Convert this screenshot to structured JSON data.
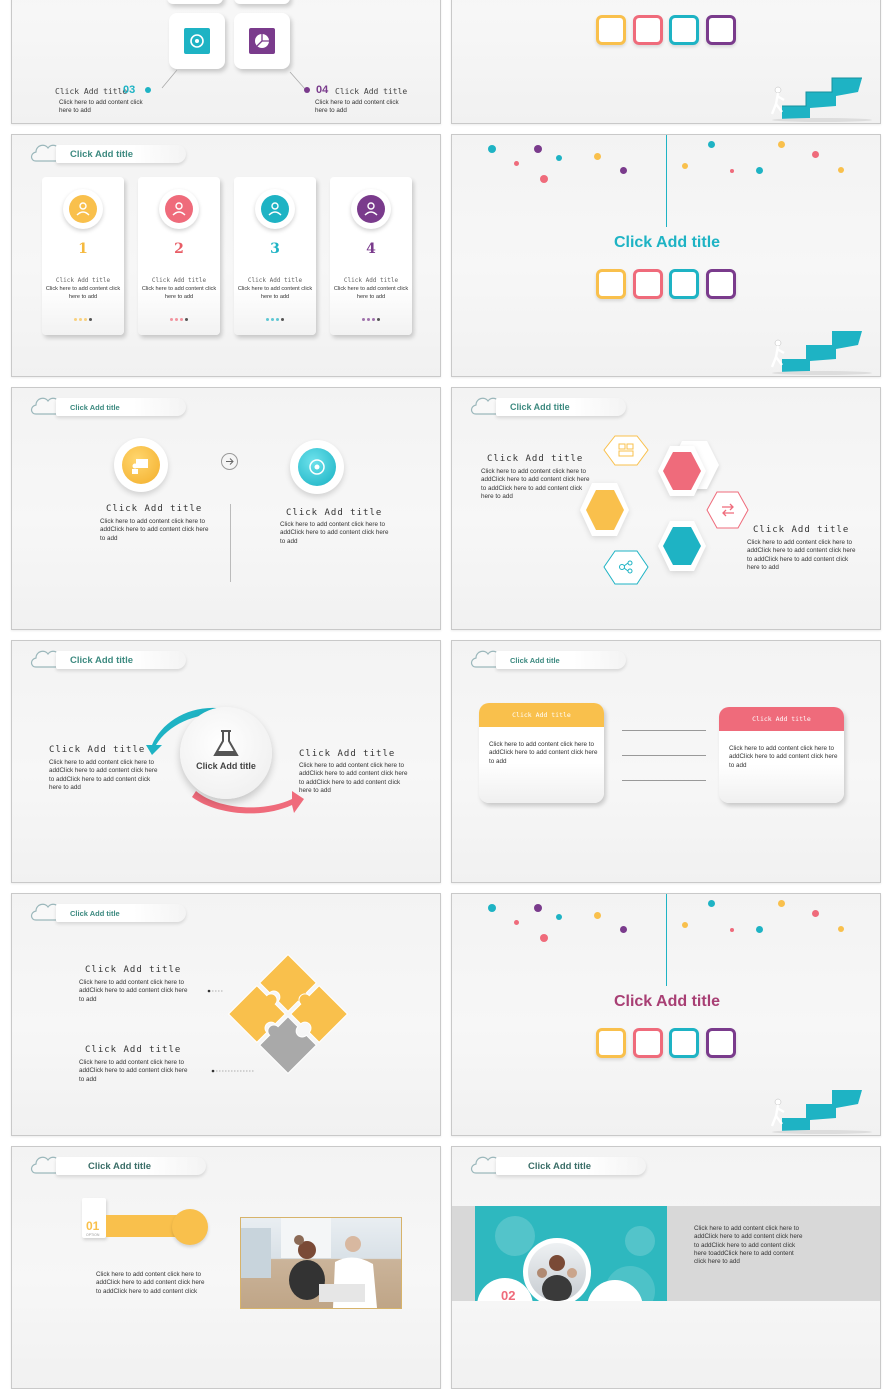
{
  "colors": {
    "teal": "#1eb3c4",
    "yellow": "#f9c04c",
    "pink": "#ef6b7b",
    "purple": "#7a3b8c",
    "red": "#e85d66"
  },
  "s1": {
    "label_03": "Click Add title",
    "num_03": "03",
    "body_03": "Click here to add content click here to add",
    "num_04": "04",
    "label_04": "Click Add title",
    "body_04": "Click here to add content click here to add"
  },
  "s3": {
    "header": "Click Add title",
    "cards": [
      {
        "num": "1",
        "title": "Click Add title",
        "body": "Click here to add content click here to add",
        "icon": "people-icon"
      },
      {
        "num": "2",
        "title": "Click Add title",
        "body": "Click here to add content click here to add",
        "icon": "hand-gear-icon"
      },
      {
        "num": "3",
        "title": "Click Add title",
        "body": "Click here to add content click here to add",
        "icon": "card-icon"
      },
      {
        "num": "4",
        "title": "Click Add title",
        "body": "Click here to add content click here to add",
        "icon": "browser-icon"
      }
    ]
  },
  "s4": {
    "title": "Click Add title"
  },
  "s5": {
    "header": "Click Add title",
    "left_title": "Click Add title",
    "left_body": "Click here to add content click here to addClick here to add content click here to add",
    "right_title": "Click Add title",
    "right_body": "Click here to add content click here to addClick here to add content click here to add"
  },
  "s6": {
    "header": "Click Add title",
    "left_title": "Click Add title",
    "left_body": "Click here to add content click here to addClick here to add content click here to addClick here to add content click here to add",
    "right_title": "Click Add title",
    "right_body": "Click here to add content click here to addClick here to add content click here to addClick here to add content click here to add"
  },
  "s7": {
    "header": "Click Add title",
    "center": "Click Add title",
    "left_title": "Click Add title",
    "left_body": "Click here to add content click here to addClick here to add content click here to addClick here to add content click here to add",
    "right_title": "Click Add title",
    "right_body": "Click here to add content click here to addClick here to add content click here to addClick here to add content click here to add"
  },
  "s8": {
    "header": "Click Add title",
    "left_box_title": "Click Add title",
    "left_box_body": "Click here to add content click here to addClick here to add content click here to add",
    "right_box_title": "Click Add title",
    "right_box_body": "Click here to add content click here to addClick here to add content click here to add"
  },
  "s9": {
    "header": "Click Add title",
    "t1": "Click Add title",
    "b1": "Click here to add content click here to addClick here to add content click here to add",
    "t2": "Click Add title",
    "b2": "Click here to add content click here to addClick here to add content click here to add"
  },
  "s10": {
    "title": "Click Add title"
  },
  "s11": {
    "header": "Click Add title",
    "num": "01",
    "option": "OPTION",
    "body": "Click here to add content click here to addClick here to add content click here to addClick here to add content click"
  },
  "s12": {
    "header": "Click Add title",
    "num": "02",
    "body": "Click here to add content click here to addClick here to add content click here to addClick here to add content click here toaddClick here to add content click here to add"
  }
}
